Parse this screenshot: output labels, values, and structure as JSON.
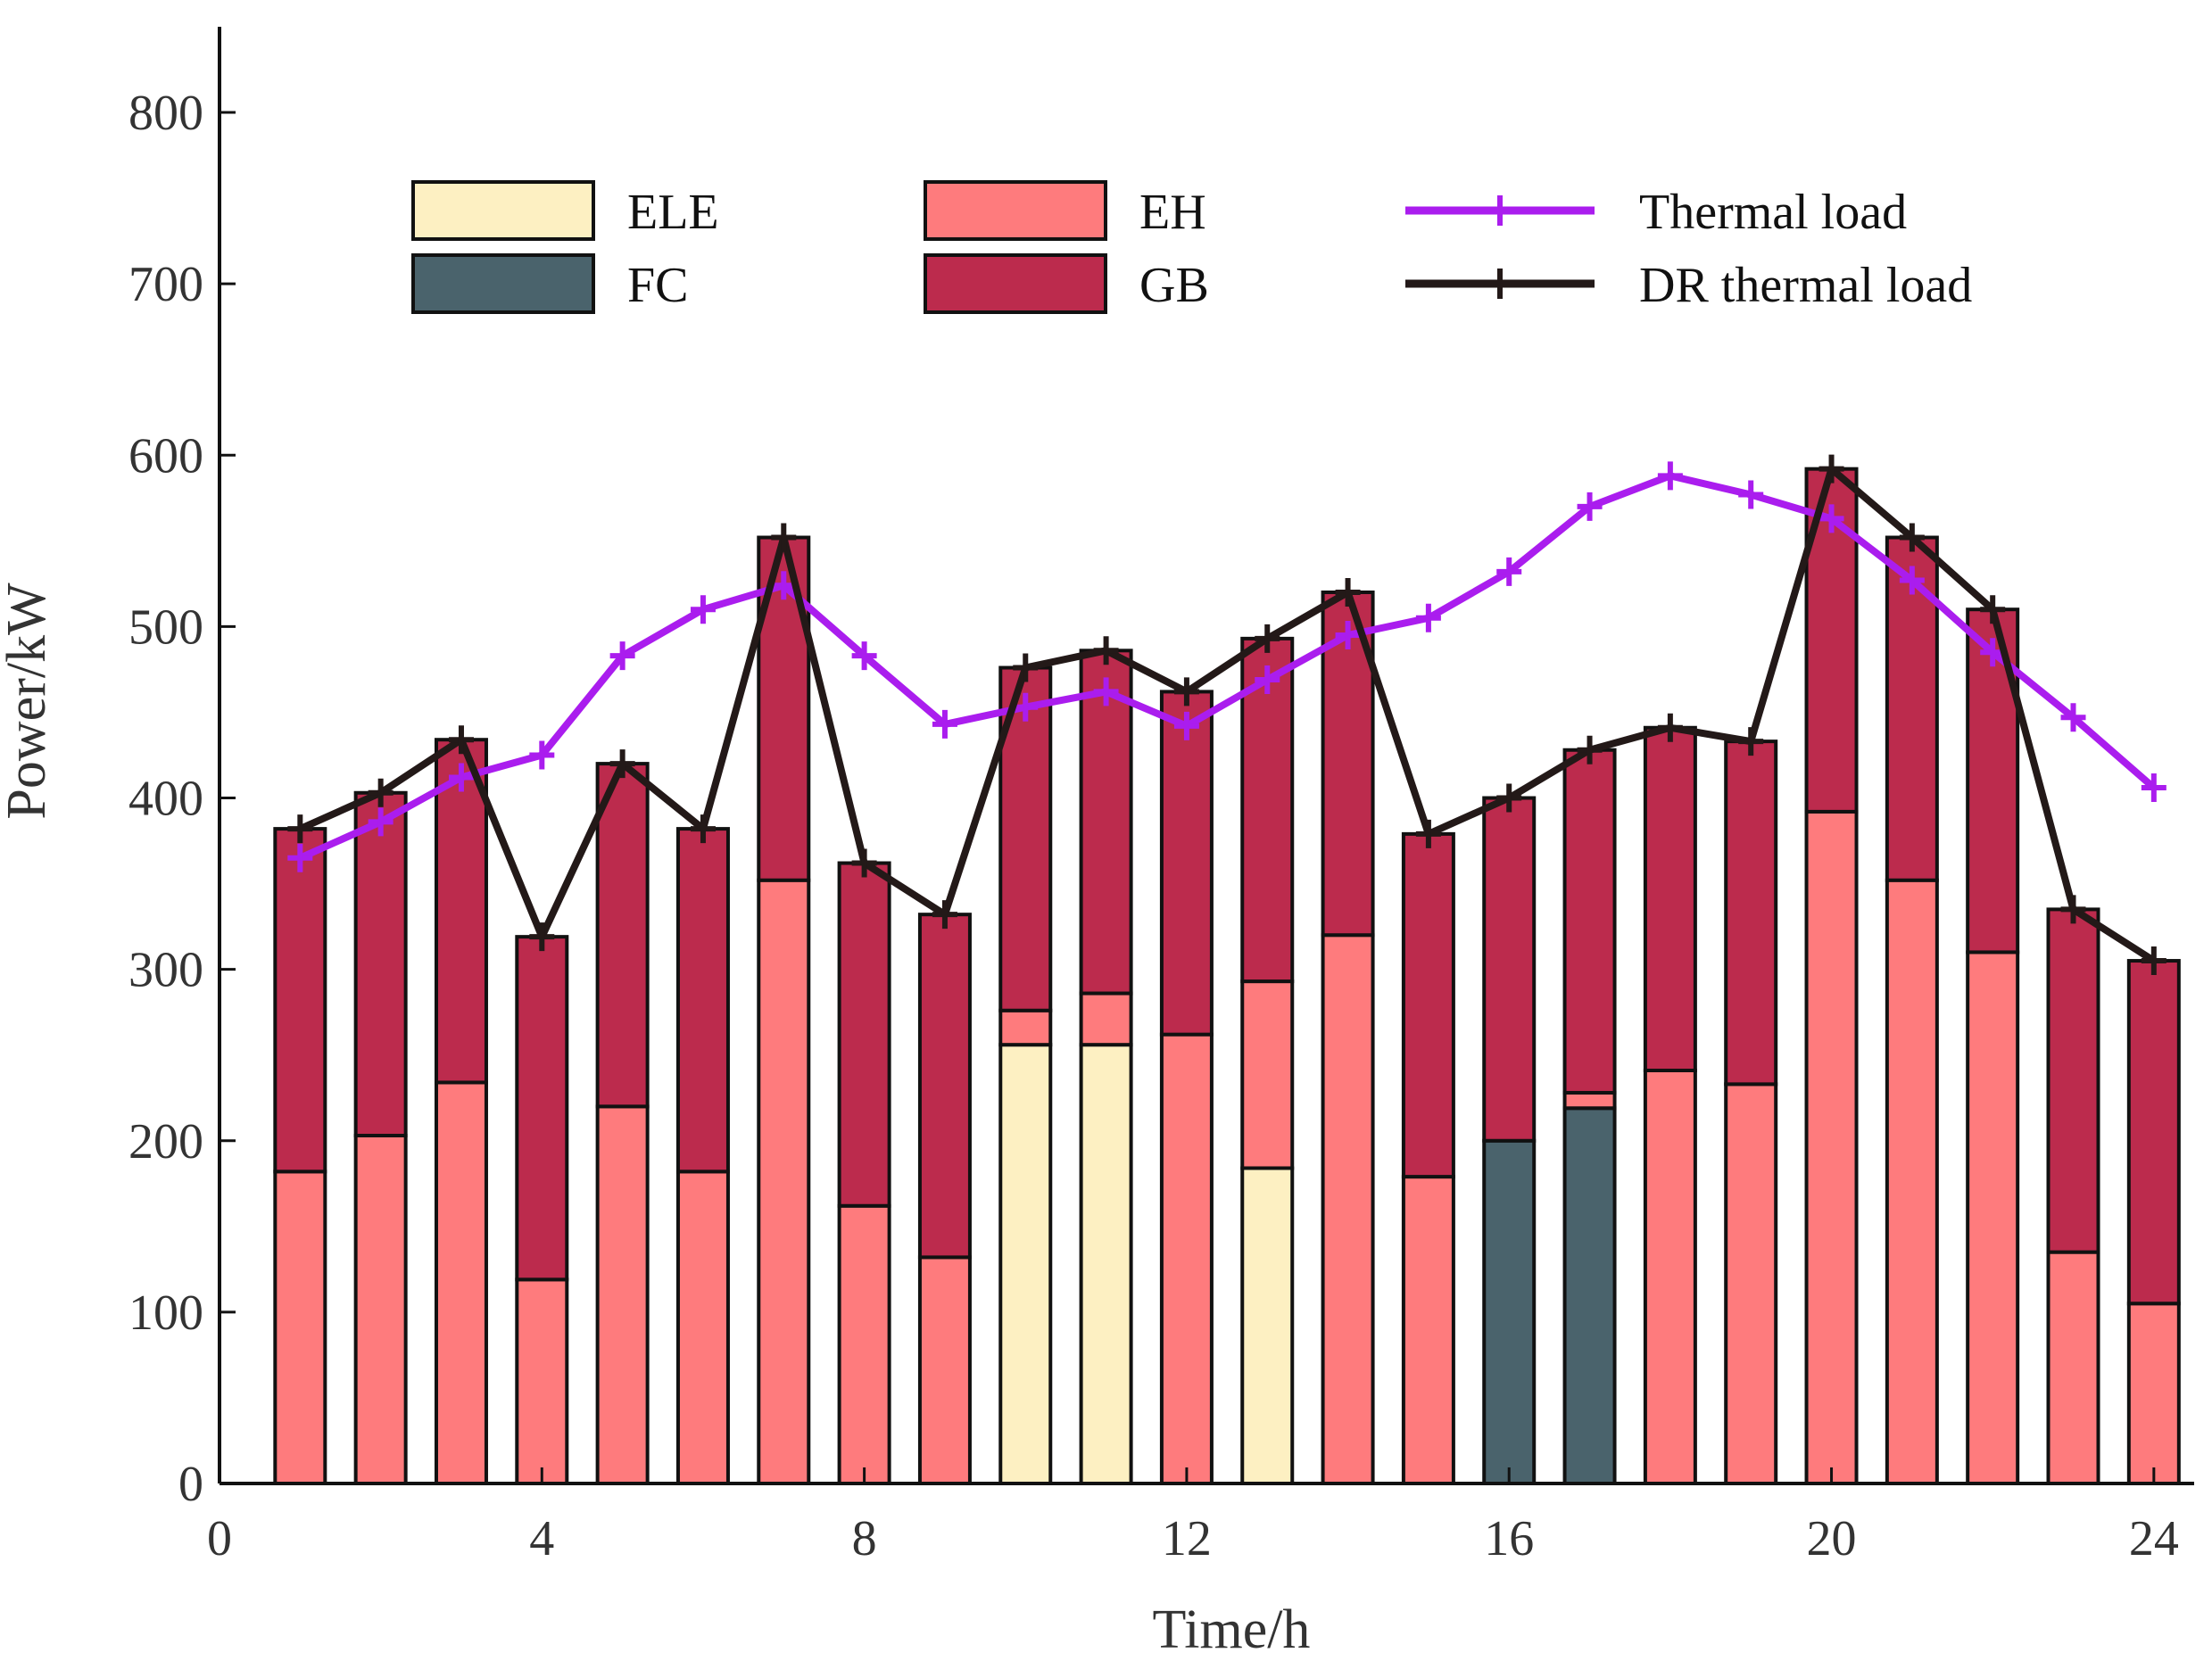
{
  "chart_data": {
    "type": "bar",
    "stacked": true,
    "xlabel": "Time/h",
    "ylabel": "Power/kW",
    "xlim": [
      0,
      24.5
    ],
    "ylim": [
      0,
      850
    ],
    "x_ticks": [
      0,
      4,
      8,
      12,
      16,
      20,
      24
    ],
    "y_ticks": [
      0,
      100,
      200,
      300,
      400,
      500,
      600,
      700,
      800
    ],
    "x": [
      1,
      2,
      3,
      4,
      5,
      6,
      7,
      8,
      9,
      10,
      11,
      12,
      13,
      14,
      15,
      16,
      17,
      18,
      19,
      20,
      21,
      22,
      23,
      24
    ],
    "bar_series": [
      {
        "name": "ELE",
        "color": "#fdf0c2",
        "values": [
          0,
          0,
          0,
          0,
          0,
          0,
          0,
          0,
          0,
          256,
          256,
          0,
          184,
          0,
          0,
          0,
          0,
          0,
          0,
          0,
          0,
          0,
          0,
          0
        ]
      },
      {
        "name": "FC",
        "color": "#4a636c",
        "values": [
          0,
          0,
          0,
          0,
          0,
          0,
          0,
          0,
          0,
          0,
          0,
          0,
          0,
          0,
          0,
          200,
          219,
          0,
          0,
          0,
          0,
          0,
          0,
          0
        ]
      },
      {
        "name": "EH",
        "color": "#fe7b7d",
        "values": [
          182,
          203,
          234,
          119,
          220,
          182,
          352,
          162,
          132,
          20,
          30,
          262,
          109,
          320,
          179,
          0,
          9,
          241,
          233,
          392,
          352,
          310,
          135,
          105
        ]
      },
      {
        "name": "GB",
        "color": "#bc2b4d",
        "values": [
          200,
          200,
          200,
          200,
          200,
          200,
          200,
          200,
          200,
          200,
          200,
          200,
          200,
          200,
          200,
          200,
          200,
          200,
          200,
          200,
          200,
          200,
          200,
          200
        ]
      }
    ],
    "line_series": [
      {
        "name": "Thermal load",
        "color": "#aa1dee",
        "values": [
          365,
          386,
          412,
          425,
          483,
          510,
          524,
          483,
          443,
          453,
          462,
          442,
          469,
          495,
          505,
          532,
          570,
          588,
          577,
          563,
          527,
          485,
          447,
          406
        ]
      },
      {
        "name": "DR thermal load",
        "color": "#231918",
        "values": [
          382,
          403,
          434,
          319,
          420,
          382,
          552,
          362,
          332,
          476,
          486,
          462,
          493,
          520,
          379,
          400,
          428,
          441,
          433,
          592,
          552,
          510,
          335,
          305
        ]
      }
    ],
    "legend": [
      {
        "label": "ELE",
        "kind": "patch",
        "color": "#fdf0c2"
      },
      {
        "label": "EH",
        "kind": "patch",
        "color": "#fe7b7d"
      },
      {
        "label": "Thermal load",
        "kind": "line",
        "color": "#aa1dee"
      },
      {
        "label": "FC",
        "kind": "patch",
        "color": "#4a636c"
      },
      {
        "label": "GB",
        "kind": "patch",
        "color": "#bc2b4d"
      },
      {
        "label": "DR thermal load",
        "kind": "line",
        "color": "#231918"
      }
    ],
    "legend_position": "top",
    "grid": false
  }
}
